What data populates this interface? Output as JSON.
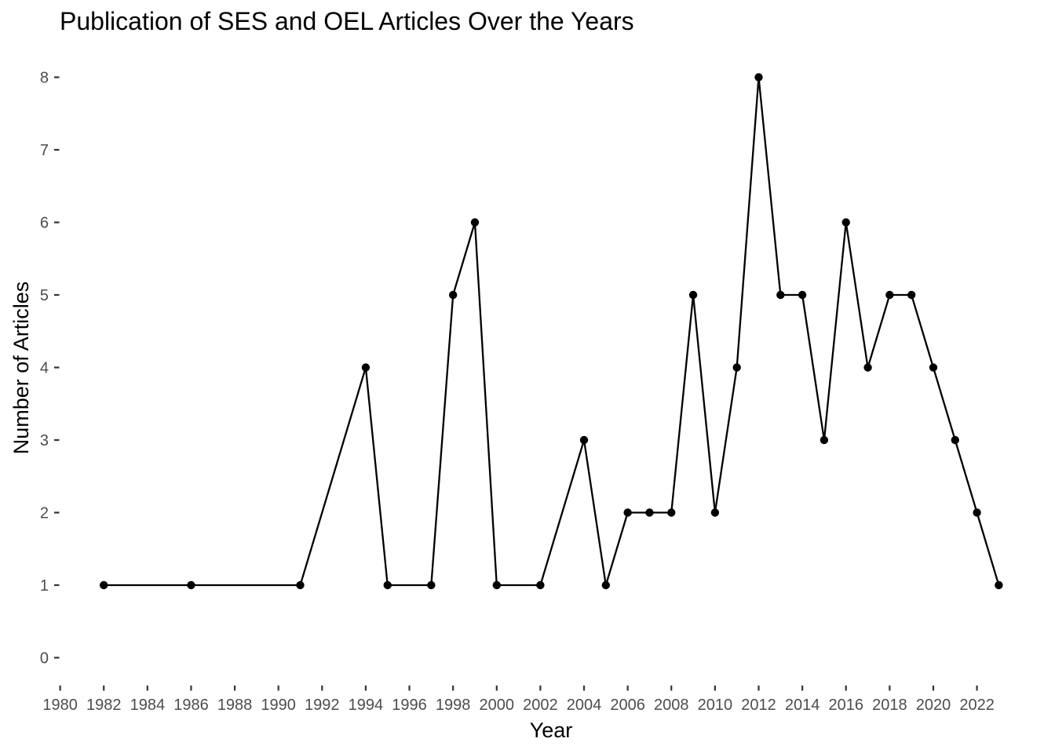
{
  "chart_data": {
    "type": "line",
    "title": "Publication of SES and OEL Articles Over the Years",
    "xlabel": "Year",
    "ylabel": "Number of Articles",
    "xlim": [
      1980,
      2023
    ],
    "ylim": [
      0,
      8
    ],
    "xticks": [
      1980,
      1982,
      1984,
      1986,
      1988,
      1990,
      1992,
      1994,
      1996,
      1998,
      2000,
      2002,
      2004,
      2006,
      2008,
      2010,
      2012,
      2014,
      2016,
      2018,
      2020,
      2022
    ],
    "yticks": [
      0,
      1,
      2,
      3,
      4,
      5,
      6,
      7,
      8
    ],
    "grid": false,
    "series": [
      {
        "x": [
          1982,
          1986,
          1991,
          1994,
          1995,
          1997,
          1998,
          1999,
          2000,
          2002,
          2004,
          2005,
          2006,
          2007,
          2008,
          2009,
          2010,
          2011,
          2012,
          2013,
          2014,
          2015,
          2016,
          2017,
          2018,
          2019,
          2020,
          2021,
          2022,
          2023
        ],
        "y": [
          1,
          1,
          1,
          4,
          1,
          1,
          5,
          6,
          1,
          1,
          3,
          1,
          2,
          2,
          2,
          5,
          2,
          4,
          8,
          5,
          5,
          3,
          6,
          4,
          5,
          5,
          4,
          3,
          2,
          1
        ],
        "color": "#000000"
      }
    ]
  }
}
